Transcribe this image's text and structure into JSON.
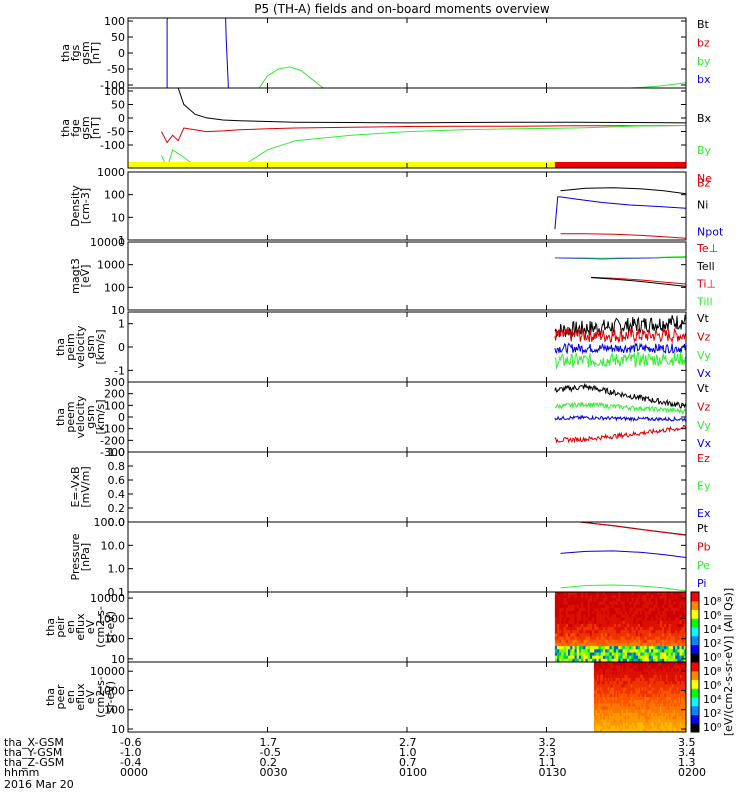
{
  "title": "P5 (TH-A) fields and on-board moments overview",
  "colors": {
    "black": "#000000",
    "red": "#dd0000",
    "green": "#33ee33",
    "blue": "#0000dd",
    "yellow": "#ffff00",
    "barred": "#ee0000"
  },
  "chart_data": [
    {
      "type": "line",
      "id": "fgs",
      "ylabel": [
        "tha",
        "fgs",
        "gsm",
        "[nT]"
      ],
      "yticks": [
        "100",
        "50",
        "0",
        "-50",
        "-100"
      ],
      "ylim": [
        -100,
        100
      ],
      "scale": "linear",
      "legend": [
        {
          "name": "Bt",
          "color": "black"
        },
        {
          "name": "bz",
          "color": "red"
        },
        {
          "name": "by",
          "color": "green"
        },
        {
          "name": "bx",
          "color": "blue"
        }
      ],
      "series": [
        {
          "color": "blue",
          "x": [
            0.07,
            0.07,
            0.071,
            0.175,
            0.176,
            0.18
          ],
          "y": [
            -100,
            95,
            100,
            100,
            40,
            -100
          ]
        },
        {
          "color": "green",
          "x": [
            0.235,
            0.25,
            0.27,
            0.29,
            0.31,
            0.33,
            0.35
          ],
          "y": [
            -100,
            -65,
            -45,
            -40,
            -50,
            -75,
            -100
          ]
        },
        {
          "color": "green",
          "x": [
            0.86,
            0.9,
            0.95,
            1.0
          ],
          "y": [
            -100,
            -100,
            -95,
            -85
          ]
        }
      ]
    },
    {
      "type": "line",
      "id": "fge",
      "ylabel": [
        "tha",
        "fge",
        "gsm",
        "[nT]"
      ],
      "yticks": [
        "100",
        "50",
        "0",
        "-50",
        "-100"
      ],
      "ylim": [
        -120,
        100
      ],
      "scale": "linear",
      "legend": [
        {
          "name": "Bx",
          "color": "black"
        },
        {
          "name": "By",
          "color": "green"
        },
        {
          "name": "Bz",
          "color": "red"
        }
      ],
      "series": [
        {
          "color": "black",
          "x": [
            0.09,
            0.1,
            0.12,
            0.14,
            0.17,
            0.2,
            0.25,
            0.3,
            0.4,
            0.5,
            0.6,
            0.7,
            0.8,
            0.9,
            1.0
          ],
          "y": [
            100,
            55,
            28,
            18,
            12,
            10,
            8,
            6,
            5,
            4,
            5,
            6,
            6,
            5,
            4
          ]
        },
        {
          "color": "red",
          "x": [
            0.06,
            0.07,
            0.08,
            0.09,
            0.1,
            0.12,
            0.14,
            0.17,
            0.2,
            0.25,
            0.3,
            0.4,
            0.5,
            0.6,
            0.7,
            0.8,
            0.9,
            1.0
          ],
          "y": [
            -20,
            -50,
            -30,
            -45,
            -10,
            -15,
            -20,
            -18,
            -15,
            -12,
            -10,
            -8,
            -6,
            -5,
            -5,
            -4,
            -4,
            -3
          ]
        },
        {
          "color": "green",
          "x": [
            0.06,
            0.07,
            0.08,
            0.1,
            0.12,
            0.14,
            0.15,
            0.18,
            0.2,
            0.25,
            0.3,
            0.4,
            0.5,
            0.6,
            0.7,
            0.8,
            0.85,
            0.9,
            1.0
          ],
          "y": [
            -85,
            -120,
            -70,
            -90,
            -115,
            -120,
            -118,
            -120,
            -120,
            -70,
            -45,
            -30,
            -20,
            -15,
            -12,
            -10,
            -8,
            -5,
            -3
          ]
        }
      ],
      "bar": {
        "yellow_until": 0.765
      }
    },
    {
      "type": "line",
      "id": "density",
      "ylabel": [
        "Density",
        "[cm-3]"
      ],
      "yticks": [
        "1000",
        "100",
        "10",
        "1"
      ],
      "ylim": [
        1,
        1000
      ],
      "scale": "log",
      "legend": [
        {
          "name": "Ne",
          "color": "red"
        },
        {
          "name": "Ni",
          "color": "black"
        },
        {
          "name": "Npot",
          "color": "blue"
        }
      ],
      "series": [
        {
          "color": "black",
          "x": [
            0.775,
            0.82,
            0.87,
            0.92,
            0.96,
            1.0
          ],
          "y": [
            150,
            190,
            200,
            180,
            150,
            110
          ]
        },
        {
          "color": "blue",
          "x": [
            0.765,
            0.77,
            0.775,
            0.8,
            0.85,
            0.9,
            0.95,
            1.0
          ],
          "y": [
            3,
            80,
            80,
            65,
            45,
            35,
            30,
            25
          ]
        },
        {
          "color": "red",
          "x": [
            0.775,
            0.82,
            0.87,
            0.92,
            0.96,
            1.0
          ],
          "y": [
            1.9,
            1.9,
            1.8,
            1.6,
            1.4,
            1.2
          ]
        }
      ]
    },
    {
      "type": "line",
      "id": "magt3",
      "ylabel": [
        "magt3",
        "[eV]"
      ],
      "yticks": [
        "10000",
        "1000",
        "100",
        "10"
      ],
      "ylim": [
        10,
        10000
      ],
      "scale": "log",
      "legend": [
        {
          "name": "Te⊥",
          "color": "red"
        },
        {
          "name": "Tell",
          "color": "black"
        },
        {
          "name": "Ti⊥",
          "color": "red"
        },
        {
          "name": "Till",
          "color": "green"
        }
      ],
      "series": [
        {
          "color": "blue",
          "x": [
            0.765,
            0.8,
            0.85,
            0.9,
            0.95,
            1.0
          ],
          "y": [
            2000,
            1900,
            1800,
            1900,
            2000,
            2200
          ]
        },
        {
          "color": "green",
          "x": [
            0.765,
            0.8,
            0.85,
            0.9,
            0.95,
            1.0
          ],
          "y": [
            2100,
            2000,
            1900,
            2000,
            2100,
            2300
          ]
        },
        {
          "color": "red",
          "x": [
            0.83,
            0.87,
            0.92,
            0.96,
            1.0
          ],
          "y": [
            280,
            250,
            210,
            170,
            140
          ]
        },
        {
          "color": "black",
          "x": [
            0.83,
            0.87,
            0.92,
            0.96,
            1.0
          ],
          "y": [
            270,
            230,
            180,
            140,
            110
          ]
        }
      ]
    },
    {
      "type": "line",
      "id": "peim",
      "ylabel": [
        "tha",
        "peim",
        "velocity",
        "gsm",
        "[km/s]"
      ],
      "yticks": [
        "1",
        "0",
        "-1"
      ],
      "ylim": [
        -1.5,
        1.5
      ],
      "scale": "linear",
      "legend": [
        {
          "name": "Vt",
          "color": "black"
        },
        {
          "name": "Vz",
          "color": "red"
        },
        {
          "name": "Vy",
          "color": "green"
        },
        {
          "name": "Vx",
          "color": "blue"
        }
      ],
      "series": [
        {
          "color": "black",
          "x": [
            0.765,
            1.0
          ],
          "y": [
            0.7,
            1.1
          ],
          "noise": 0.35
        },
        {
          "color": "red",
          "x": [
            0.765,
            1.0
          ],
          "y": [
            0.5,
            0.5
          ],
          "noise": 0.3
        },
        {
          "color": "blue",
          "x": [
            0.765,
            1.0
          ],
          "y": [
            -0.05,
            -0.05
          ],
          "noise": 0.2
        },
        {
          "color": "green",
          "x": [
            0.765,
            1.0
          ],
          "y": [
            -0.6,
            -0.5
          ],
          "noise": 0.3
        }
      ]
    },
    {
      "type": "line",
      "id": "peem",
      "ylabel": [
        "tha",
        "peem",
        "velocity",
        "gsm",
        "[km/s]"
      ],
      "yticks": [
        "300",
        "200",
        "100",
        "0",
        "-100",
        "-200",
        "-300"
      ],
      "ylim": [
        -300,
        300
      ],
      "scale": "linear",
      "legend": [
        {
          "name": "Vt",
          "color": "black"
        },
        {
          "name": "Vz",
          "color": "red"
        },
        {
          "name": "Vy",
          "color": "green"
        },
        {
          "name": "Vx",
          "color": "blue"
        }
      ],
      "series": [
        {
          "color": "black",
          "x": [
            0.765,
            0.82,
            0.9,
            1.0
          ],
          "y": [
            230,
            260,
            180,
            90
          ],
          "noise": 25
        },
        {
          "color": "green",
          "x": [
            0.765,
            0.82,
            0.9,
            1.0
          ],
          "y": [
            90,
            110,
            80,
            50
          ],
          "noise": 20
        },
        {
          "color": "blue",
          "x": [
            0.765,
            0.82,
            0.9,
            1.0
          ],
          "y": [
            -10,
            -5,
            -15,
            -20
          ],
          "noise": 15
        },
        {
          "color": "red",
          "x": [
            0.765,
            0.82,
            0.9,
            1.0
          ],
          "y": [
            -200,
            -190,
            -150,
            -90
          ],
          "noise": 20
        }
      ]
    },
    {
      "type": "line",
      "id": "efield",
      "ylabel": [
        "E=-VxB",
        "[mV/m]"
      ],
      "yticks": [
        "1.0",
        "0.8",
        "0.6",
        "0.4",
        "0.2",
        "0.0"
      ],
      "ylim": [
        0,
        1
      ],
      "scale": "linear",
      "legend": [
        {
          "name": "Ez",
          "color": "red"
        },
        {
          "name": "Ey",
          "color": "green"
        },
        {
          "name": "Ex",
          "color": "blue"
        }
      ],
      "series": []
    },
    {
      "type": "line",
      "id": "pressure",
      "ylabel": [
        "Pressure",
        "[nPa]"
      ],
      "yticks": [
        "100.0",
        "10.0",
        "1.0",
        "0.1"
      ],
      "ylim": [
        0.1,
        100
      ],
      "scale": "log",
      "legend": [
        {
          "name": "Pt",
          "color": "black"
        },
        {
          "name": "Pb",
          "color": "red"
        },
        {
          "name": "Pe",
          "color": "green"
        },
        {
          "name": "Pi",
          "color": "blue"
        }
      ],
      "series": [
        {
          "color": "black",
          "x": [
            0.81,
            0.87,
            0.93,
            1.0
          ],
          "y": [
            100,
            70,
            45,
            28
          ]
        },
        {
          "color": "red",
          "x": [
            0.81,
            0.87,
            0.93,
            1.0
          ],
          "y": [
            100,
            68,
            44,
            27
          ]
        },
        {
          "color": "blue",
          "x": [
            0.775,
            0.82,
            0.87,
            0.92,
            0.96,
            1.0
          ],
          "y": [
            4.5,
            5.5,
            5.8,
            5.0,
            4.0,
            3.0
          ]
        },
        {
          "color": "green",
          "x": [
            0.775,
            0.82,
            0.87,
            0.92,
            0.96,
            1.0
          ],
          "y": [
            0.15,
            0.19,
            0.2,
            0.18,
            0.15,
            0.11
          ]
        }
      ]
    },
    {
      "type": "heatmap",
      "id": "peir",
      "ylabel": [
        "tha",
        "peir",
        "en",
        "eflux",
        "eV",
        "(cm2-s-",
        "sr-eV)"
      ],
      "yticks": [
        "10000",
        "1000",
        "100",
        "10"
      ],
      "ylim": [
        7,
        20000
      ],
      "scale": "log",
      "x_start": 0.765
    },
    {
      "type": "heatmap",
      "id": "peer",
      "ylabel": [
        "tha",
        "peer",
        "en",
        "eflux",
        "eV",
        "(cm2-s-",
        "sr-eV)"
      ],
      "yticks": [
        "10000",
        "1000",
        "100",
        "10"
      ],
      "ylim": [
        7,
        30000
      ],
      "scale": "log",
      "x_start": 0.835
    }
  ],
  "colorbar1": {
    "labels": [
      "10⁸",
      "10⁶",
      "10⁴",
      "10²",
      "10⁰"
    ]
  },
  "colorbar2": {
    "labels": [
      "10⁸",
      "10⁶",
      "10⁴",
      "10²",
      "10⁰"
    ]
  },
  "colorbar_title": "[eV/(cm2-s-sr-eV)] (All Qs)]",
  "footer": {
    "rows": [
      {
        "label": "tha_X-GSM",
        "values": [
          "-0.6",
          "1.7",
          "2.7",
          "3.2",
          "3.5"
        ]
      },
      {
        "label": "tha_Y-GSM",
        "values": [
          "-1.0",
          "-0.5",
          "1.0",
          "2.3",
          "3.4"
        ]
      },
      {
        "label": "tha_Z-GSM",
        "values": [
          "-0.4",
          "0.2",
          "0.7",
          "1.1",
          "1.3"
        ]
      },
      {
        "label": "hhmm",
        "values": [
          "0000",
          "0030",
          "0100",
          "0130",
          "0200"
        ]
      }
    ],
    "date": "2016 Mar 20"
  }
}
